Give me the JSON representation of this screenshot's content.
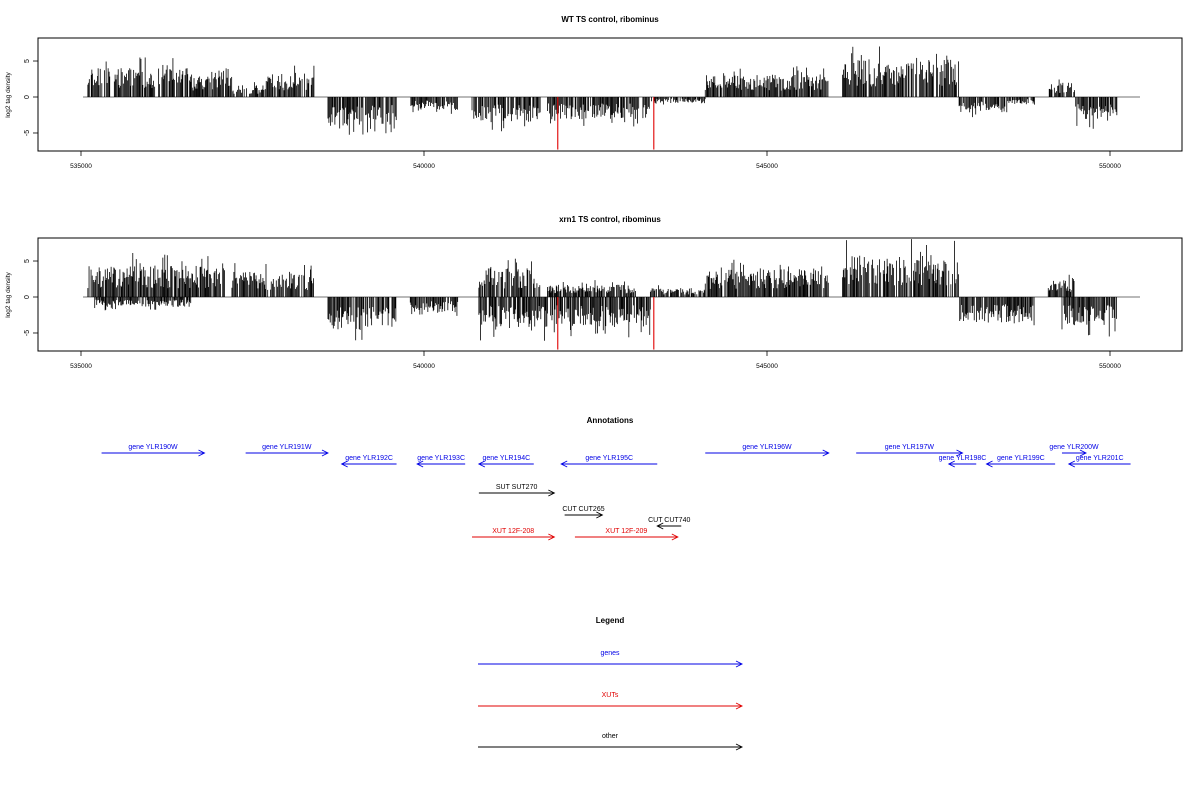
{
  "chart_data": [
    {
      "type": "bar",
      "title": "WT TS control, ribominus",
      "ylabel": "log2 tag density",
      "xlim": [
        533950,
        550300
      ],
      "ylim": [
        -7.5,
        8.2
      ],
      "xticks": [
        535000,
        540000,
        545000,
        550000
      ],
      "xtick_labels": [
        "535000",
        "540000",
        "545000",
        "550000"
      ],
      "yticks": [
        -5,
        0,
        5
      ],
      "ytick_labels": [
        "-5",
        "0",
        "5"
      ],
      "grid": false,
      "segments": [
        {
          "start": 535100,
          "end": 536600,
          "amp": 3.2,
          "sign": 1
        },
        {
          "start": 536600,
          "end": 537200,
          "amp": 2.4,
          "sign": 1
        },
        {
          "start": 537200,
          "end": 537700,
          "amp": 1.3,
          "sign": 1
        },
        {
          "start": 537700,
          "end": 538400,
          "amp": 2.6,
          "sign": 1
        },
        {
          "start": 538600,
          "end": 539600,
          "amp": 3.2,
          "sign": -1
        },
        {
          "start": 539800,
          "end": 540500,
          "amp": 1.4,
          "sign": -1
        },
        {
          "start": 540700,
          "end": 541700,
          "amp": 2.8,
          "sign": -1
        },
        {
          "start": 541800,
          "end": 543300,
          "amp": 2.5,
          "sign": -1
        },
        {
          "start": 543300,
          "end": 544100,
          "amp": 0.7,
          "sign": -1
        },
        {
          "start": 544100,
          "end": 545900,
          "amp": 2.5,
          "sign": 1
        },
        {
          "start": 546100,
          "end": 547800,
          "amp": 4.2,
          "sign": 1
        },
        {
          "start": 547800,
          "end": 548500,
          "amp": 1.7,
          "sign": -1
        },
        {
          "start": 548500,
          "end": 548900,
          "amp": 0.8,
          "sign": -1
        },
        {
          "start": 549100,
          "end": 549500,
          "amp": 1.6,
          "sign": 1
        },
        {
          "start": 549500,
          "end": 550100,
          "amp": 2.6,
          "sign": -1
        }
      ],
      "highlights": [
        {
          "x": 541950,
          "y": -7.3,
          "color": "#e00000"
        },
        {
          "x": 543350,
          "y": -7.3,
          "color": "#e00000"
        }
      ]
    },
    {
      "type": "bar",
      "title": "xrn1 TS control, ribominus",
      "ylabel": "log2 tag density",
      "xlim": [
        533950,
        550300
      ],
      "ylim": [
        -7.5,
        8.2
      ],
      "xticks": [
        535000,
        540000,
        545000,
        550000
      ],
      "xtick_labels": [
        "535000",
        "540000",
        "545000",
        "550000"
      ],
      "yticks": [
        -5,
        0,
        5
      ],
      "ytick_labels": [
        "-5",
        "0",
        "5"
      ],
      "grid": false,
      "segments": [
        {
          "start": 535100,
          "end": 537100,
          "amp": 3.5,
          "sign": 1
        },
        {
          "start": 535200,
          "end": 536600,
          "amp": 1.1,
          "sign": -1
        },
        {
          "start": 537200,
          "end": 538400,
          "amp": 2.8,
          "sign": 1
        },
        {
          "start": 538600,
          "end": 539600,
          "amp": 3.6,
          "sign": -1
        },
        {
          "start": 539800,
          "end": 540500,
          "amp": 1.7,
          "sign": -1
        },
        {
          "start": 540800,
          "end": 541700,
          "amp": 3.2,
          "sign": 1
        },
        {
          "start": 540800,
          "end": 541800,
          "amp": 3.5,
          "sign": -1
        },
        {
          "start": 541800,
          "end": 543300,
          "amp": 3.2,
          "sign": -1
        },
        {
          "start": 541800,
          "end": 543100,
          "amp": 1.4,
          "sign": 1
        },
        {
          "start": 543300,
          "end": 544100,
          "amp": 1.0,
          "sign": 1
        },
        {
          "start": 544100,
          "end": 545900,
          "amp": 3.1,
          "sign": 1
        },
        {
          "start": 546100,
          "end": 547800,
          "amp": 4.6,
          "sign": 1
        },
        {
          "start": 547800,
          "end": 548900,
          "amp": 2.9,
          "sign": -1
        },
        {
          "start": 549100,
          "end": 549500,
          "amp": 1.8,
          "sign": 1
        },
        {
          "start": 549300,
          "end": 550100,
          "amp": 3.2,
          "sign": -1
        }
      ],
      "highlights": [
        {
          "x": 541950,
          "y": -7.3,
          "color": "#e00000"
        },
        {
          "x": 543350,
          "y": -7.3,
          "color": "#e00000"
        }
      ]
    }
  ],
  "annotations": {
    "title": "Annotations",
    "items": [
      {
        "label": "gene YLR190W",
        "start": 535300,
        "end": 536800,
        "dir": "right",
        "color": "#0000e6",
        "row": 0
      },
      {
        "label": "gene YLR191W",
        "start": 537400,
        "end": 538600,
        "dir": "right",
        "color": "#0000e6",
        "row": 0
      },
      {
        "label": "gene YLR192C",
        "start": 538800,
        "end": 539600,
        "dir": "left",
        "color": "#0000e6",
        "row": 1
      },
      {
        "label": "gene YLR193C",
        "start": 539900,
        "end": 540600,
        "dir": "left",
        "color": "#0000e6",
        "row": 1
      },
      {
        "label": "gene YLR194C",
        "start": 540800,
        "end": 541600,
        "dir": "left",
        "color": "#0000e6",
        "row": 1
      },
      {
        "label": "gene YLR195C",
        "start": 542000,
        "end": 543400,
        "dir": "left",
        "color": "#0000e6",
        "row": 1
      },
      {
        "label": "gene YLR196W",
        "start": 544100,
        "end": 545900,
        "dir": "right",
        "color": "#0000e6",
        "row": 0
      },
      {
        "label": "gene YLR197W",
        "start": 546300,
        "end": 547850,
        "dir": "right",
        "color": "#0000e6",
        "row": 0
      },
      {
        "label": "gene YLR198C",
        "start": 547650,
        "end": 548050,
        "dir": "left",
        "color": "#0000e6",
        "row": 1
      },
      {
        "label": "gene YLR199C",
        "start": 548200,
        "end": 549200,
        "dir": "left",
        "color": "#0000e6",
        "row": 1
      },
      {
        "label": "gene YLR200W",
        "start": 549300,
        "end": 549650,
        "dir": "right",
        "color": "#0000e6",
        "row": 0
      },
      {
        "label": "gene YLR201C",
        "start": 549400,
        "end": 550300,
        "dir": "left",
        "color": "#0000e6",
        "row": 1
      },
      {
        "label": "SUT SUT270",
        "start": 540800,
        "end": 541900,
        "dir": "right",
        "color": "#000000",
        "row": 3
      },
      {
        "label": "CUT CUT265",
        "start": 542050,
        "end": 542600,
        "dir": "right",
        "color": "#000000",
        "row": 4
      },
      {
        "label": "CUT CUT740",
        "start": 543400,
        "end": 543750,
        "dir": "left",
        "color": "#000000",
        "row": 5
      },
      {
        "label": "XUT 12F-208",
        "start": 540700,
        "end": 541900,
        "dir": "right",
        "color": "#e00000",
        "row": 6
      },
      {
        "label": "XUT 12F-209",
        "start": 542200,
        "end": 543700,
        "dir": "right",
        "color": "#e00000",
        "row": 6
      }
    ]
  },
  "legend": {
    "title": "Legend",
    "items": [
      {
        "label": "genes",
        "color": "#0000e6"
      },
      {
        "label": "XUTs",
        "color": "#e00000"
      },
      {
        "label": "other",
        "color": "#000000"
      }
    ]
  }
}
